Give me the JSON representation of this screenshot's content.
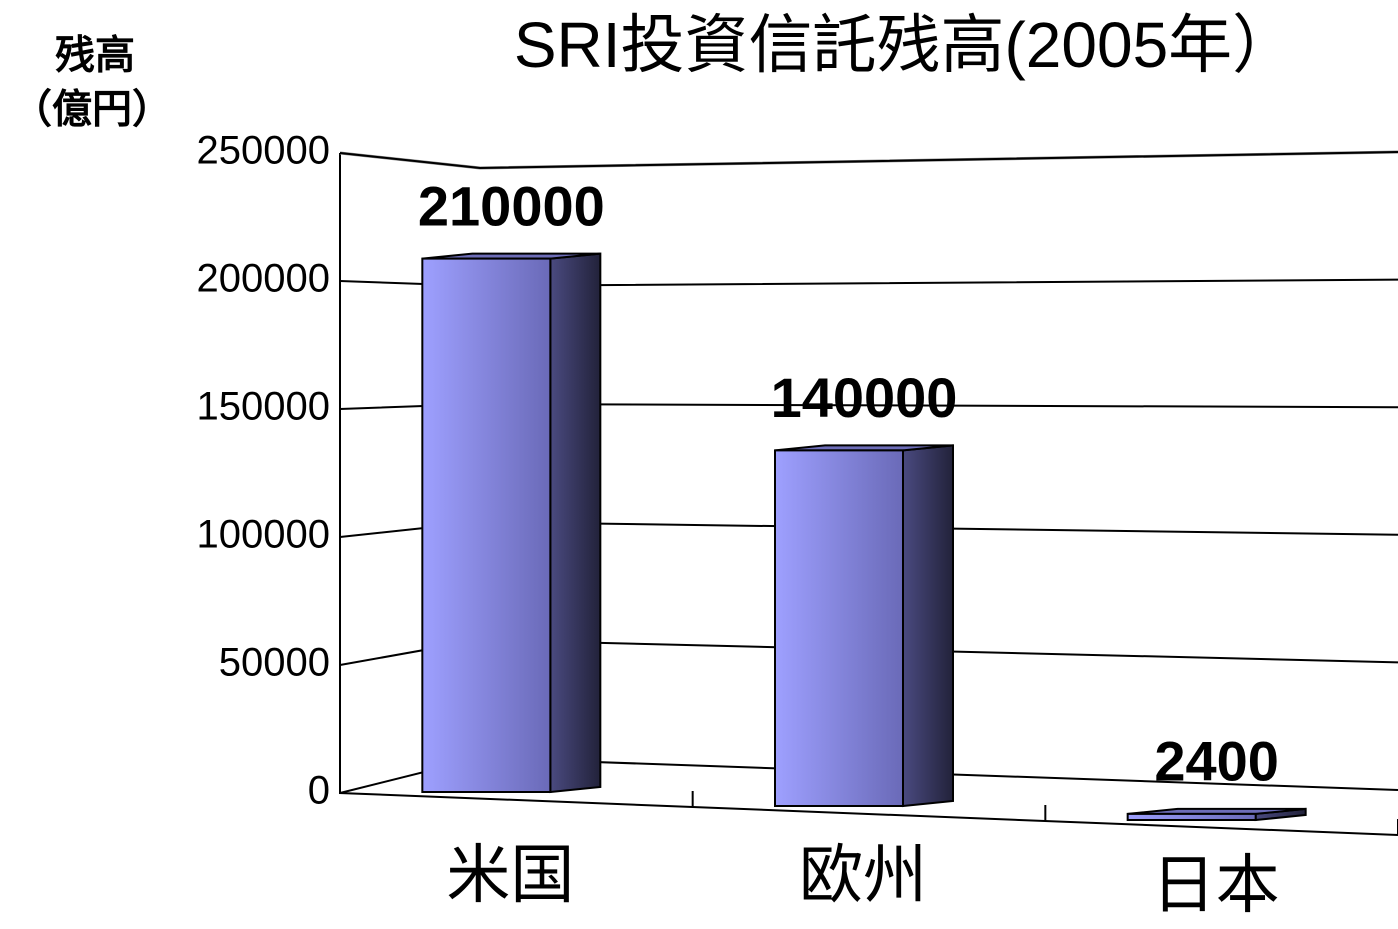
{
  "chart_data": {
    "type": "bar",
    "title": "SRI投資信託残高(2005年）",
    "ylabel": [
      "残高",
      "（億円）"
    ],
    "categories": [
      "米国",
      "欧州",
      "日本"
    ],
    "values": [
      210000,
      140000,
      2400
    ],
    "color": "#9999ff",
    "ylim": [
      0,
      250000
    ],
    "yticks": [
      0,
      50000,
      100000,
      150000,
      200000,
      250000
    ],
    "grid": true
  }
}
